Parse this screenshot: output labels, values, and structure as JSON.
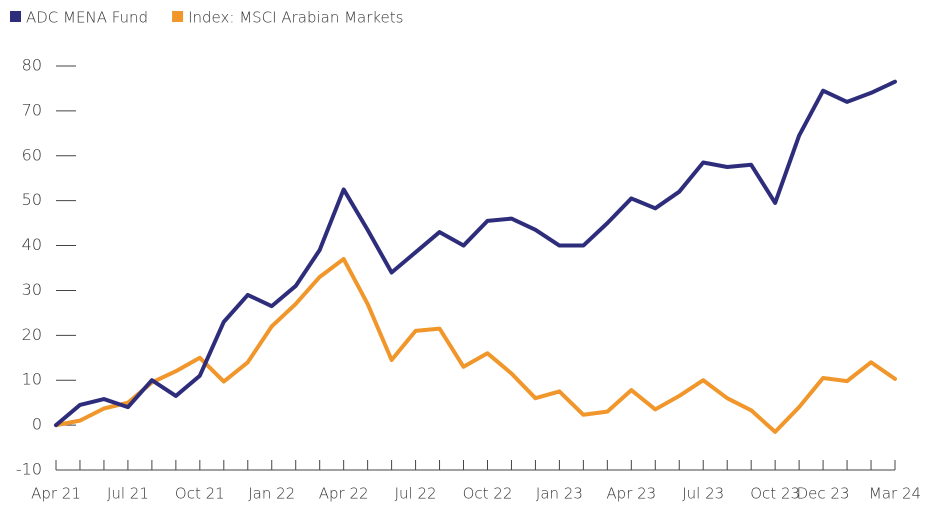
{
  "chart_data": {
    "type": "line",
    "categories": [
      "Apr 21",
      null,
      null,
      "Jul 21",
      null,
      null,
      "Oct 21",
      null,
      null,
      "Jan 22",
      null,
      null,
      "Apr 22",
      null,
      null,
      "Jul 22",
      null,
      null,
      "Oct 22",
      null,
      null,
      "Jan 23",
      null,
      null,
      "Apr 23",
      null,
      null,
      "Jul 23",
      null,
      null,
      "Oct 23",
      null,
      "Dec 23",
      null,
      null,
      "Mar 24"
    ],
    "series": [
      {
        "name": "ADC MENA Fund",
        "color": "#2e2d7b",
        "values": [
          0,
          4.5,
          5.8,
          4,
          10,
          6.5,
          11,
          23,
          29,
          26.5,
          31,
          39,
          52.5,
          43.5,
          34,
          38.5,
          43,
          40,
          45.5,
          46,
          43.5,
          40,
          40,
          45,
          50.5,
          48.3,
          52,
          58.5,
          57.5,
          58,
          49.5,
          64.5,
          74.5,
          72,
          74,
          76.5
        ]
      },
      {
        "name": "Index: MSCI Arabian Markets",
        "color": "#f0962a",
        "values": [
          0,
          1,
          3.7,
          5,
          9.5,
          12,
          15,
          9.7,
          14,
          22,
          27,
          33,
          37,
          27,
          14.5,
          21,
          21.5,
          13,
          16,
          11.5,
          6,
          7.5,
          2.3,
          3,
          7.8,
          3.5,
          6.5,
          10,
          6,
          3.3,
          -1.5,
          4,
          10.5,
          9.8,
          14,
          10.3
        ]
      }
    ],
    "ylim": [
      -10,
      80
    ],
    "yticks": [
      -10,
      0,
      10,
      20,
      30,
      40,
      50,
      60,
      70,
      80
    ],
    "legend": "top-left"
  }
}
